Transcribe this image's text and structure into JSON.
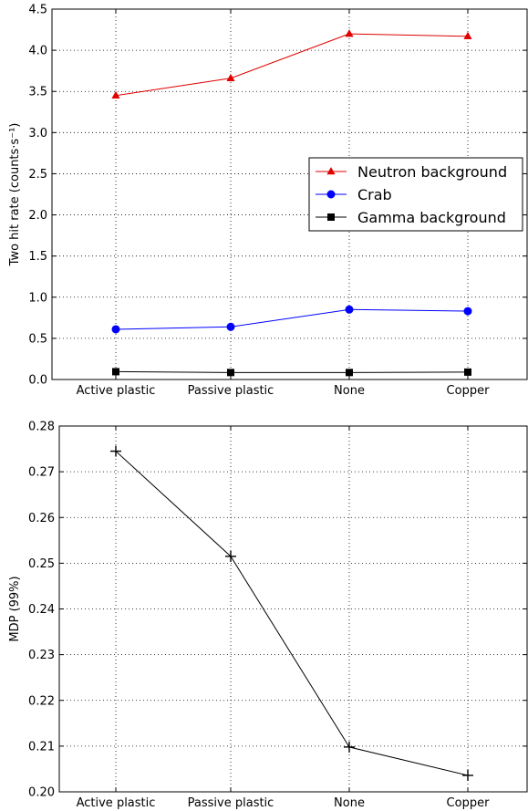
{
  "chart_data": [
    {
      "type": "line",
      "categories": [
        "Active plastic",
        "Passive plastic",
        "None",
        "Copper"
      ],
      "ylabel": "Two hit rate (counts·s⁻¹)",
      "ylim": [
        0,
        4.5
      ],
      "yticks": [
        "0.0",
        "0.5",
        "1.0",
        "1.5",
        "2.0",
        "2.5",
        "3.0",
        "3.5",
        "4.0",
        "4.5"
      ],
      "grid": true,
      "legend_position": "center-right",
      "series": [
        {
          "name": "Neutron background",
          "values": [
            3.45,
            3.66,
            4.2,
            4.17
          ],
          "color": "#e00000",
          "marker": "triangle"
        },
        {
          "name": "Crab",
          "values": [
            0.61,
            0.64,
            0.85,
            0.83
          ],
          "color": "#0000ff",
          "marker": "circle"
        },
        {
          "name": "Gamma background",
          "values": [
            0.095,
            0.085,
            0.085,
            0.09
          ],
          "color": "#000000",
          "marker": "square"
        }
      ]
    },
    {
      "type": "line",
      "categories": [
        "Active plastic",
        "Passive plastic",
        "None",
        "Copper"
      ],
      "ylabel": "MDP (99%)",
      "ylim": [
        0.2,
        0.28
      ],
      "yticks": [
        "0.20",
        "0.21",
        "0.22",
        "0.23",
        "0.24",
        "0.25",
        "0.26",
        "0.27",
        "0.28"
      ],
      "grid": true,
      "series": [
        {
          "values": [
            0.2745,
            0.2515,
            0.2098,
            0.2036
          ],
          "color": "#000000",
          "marker": "plus"
        }
      ]
    }
  ]
}
